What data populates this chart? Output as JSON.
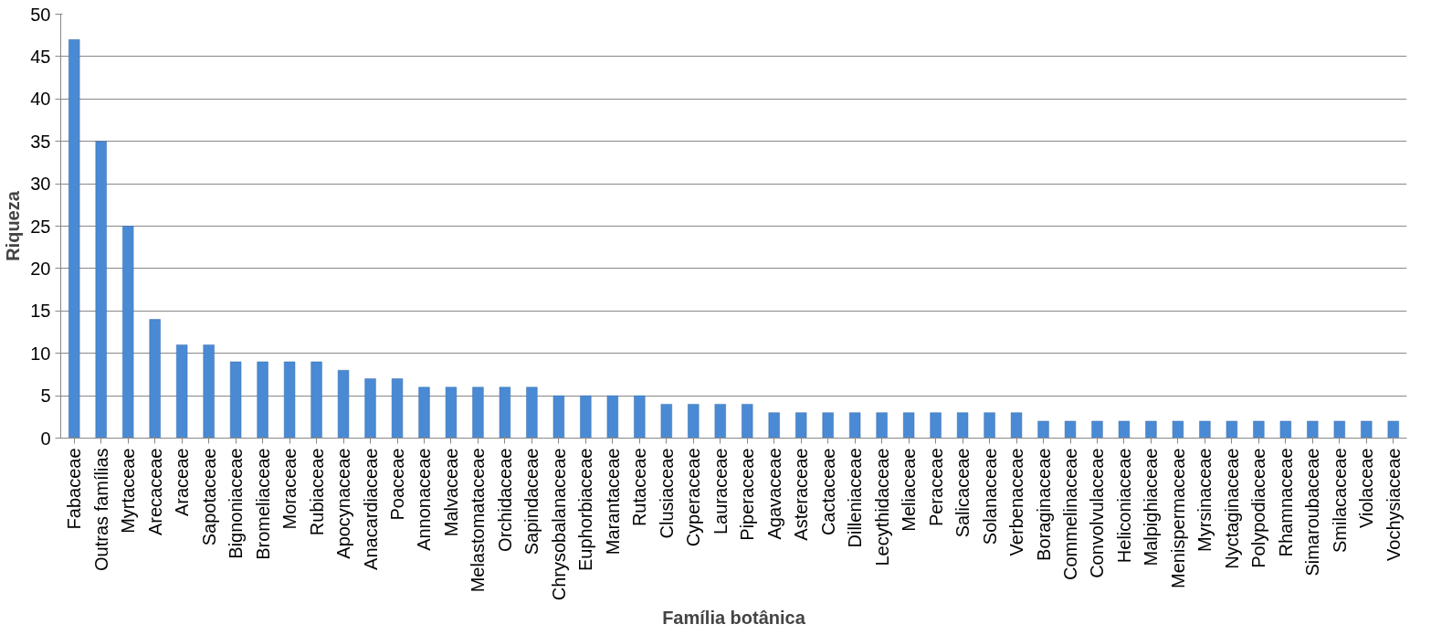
{
  "chart_data": {
    "type": "bar",
    "xlabel": "Família botânica",
    "ylabel": "Riqueza",
    "categories": [
      "Fabaceae",
      "Outras famílias",
      "Myrtaceae",
      "Arecaceae",
      "Araceae",
      "Sapotaceae",
      "Bignoniaceae",
      "Bromeliaceae",
      "Moraceae",
      "Rubiaceae",
      "Apocynaceae",
      "Anacardiaceae",
      "Poaceae",
      "Annonaceae",
      "Malvaceae",
      "Melastomataceae",
      "Orchidaceae",
      "Sapindaceae",
      "Chrysobalanaceae",
      "Euphorbiaceae",
      "Marantaceae",
      "Rutaceae",
      "Clusiaceae",
      "Cyperaceae",
      "Lauraceae",
      "Piperaceae",
      "Agavaceae",
      "Asteraceae",
      "Cactaceae",
      "Dilleniaceae",
      "Lecythidaceae",
      "Meliaceae",
      "Peraceae",
      "Salicaceae",
      "Solanaceae",
      "Verbenaceae",
      "Boraginaceae",
      "Commelinaceae",
      "Convolvulaceae",
      "Heliconiaceae",
      "Malpighiaceae",
      "Menispermaceae",
      "Myrsinaceae",
      "Nyctaginaceae",
      "Polypodiaceae",
      "Rhamnaceae",
      "Simaroubaceae",
      "Smilacaceae",
      "Violaceae",
      "Vochysiaceae"
    ],
    "values": [
      47,
      35,
      25,
      14,
      11,
      11,
      9,
      9,
      9,
      9,
      8,
      7,
      7,
      6,
      6,
      6,
      6,
      6,
      5,
      5,
      5,
      5,
      4,
      4,
      4,
      4,
      3,
      3,
      3,
      3,
      3,
      3,
      3,
      3,
      3,
      3,
      2,
      2,
      2,
      2,
      2,
      2,
      2,
      2,
      2,
      2,
      2,
      2,
      2,
      2
    ],
    "color": "#4a8ad4",
    "ylim": [
      0,
      50
    ],
    "yticks": [
      0,
      5,
      10,
      15,
      20,
      25,
      30,
      35,
      40,
      45,
      50
    ],
    "grid": "y",
    "legend": false
  }
}
